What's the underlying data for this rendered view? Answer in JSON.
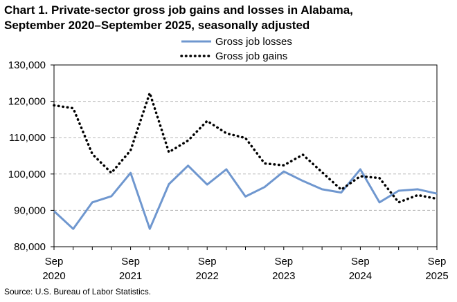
{
  "title_line1": "Chart 1. Private-sector gross job gains and losses in Alabama,",
  "title_line2": "September 2020–September 2025, seasonally adjusted",
  "source": "Source: U.S. Bureau of Labor Statistics.",
  "chart_data": {
    "type": "line",
    "ylim": [
      80000,
      130000
    ],
    "ytick_labels": [
      "80,000",
      "90,000",
      "100,000",
      "110,000",
      "120,000",
      "130,000"
    ],
    "x": [
      "Sep 2020",
      "Dec 2020",
      "Mar 2021",
      "Jun 2021",
      "Sep 2021",
      "Dec 2021",
      "Mar 2022",
      "Jun 2022",
      "Sep 2022",
      "Dec 2022",
      "Mar 2023",
      "Jun 2023",
      "Sep 2023",
      "Dec 2023",
      "Mar 2024",
      "Jun 2024",
      "Sep 2024",
      "Dec 2024",
      "Mar 2025",
      "Jun 2025",
      "Sep 2025"
    ],
    "xtick_labels": [
      {
        "index": 0,
        "month": "Sep",
        "year": "2020"
      },
      {
        "index": 4,
        "month": "Sep",
        "year": "2021"
      },
      {
        "index": 8,
        "month": "Sep",
        "year": "2022"
      },
      {
        "index": 12,
        "month": "Sep",
        "year": "2023"
      },
      {
        "index": 16,
        "month": "Sep",
        "year": "2024"
      },
      {
        "index": 20,
        "month": "Sep",
        "year": "2025"
      }
    ],
    "grid": true,
    "legend_position": "top-center",
    "series": [
      {
        "name": "Gross job losses",
        "style": "solid",
        "color": "#6f97cf",
        "values": [
          89800,
          84900,
          92200,
          93900,
          100300,
          84900,
          97200,
          102300,
          97100,
          101300,
          93800,
          96400,
          100700,
          98100,
          95800,
          94900,
          101300,
          92200,
          95400,
          95800,
          94600
        ]
      },
      {
        "name": "Gross job gains",
        "style": "dotted",
        "color": "#000000",
        "values": [
          118900,
          118100,
          105500,
          100300,
          106500,
          122300,
          106000,
          109200,
          114600,
          111200,
          109900,
          102900,
          102400,
          105300,
          100500,
          95700,
          99400,
          98900,
          92200,
          94200,
          93200
        ]
      }
    ]
  }
}
